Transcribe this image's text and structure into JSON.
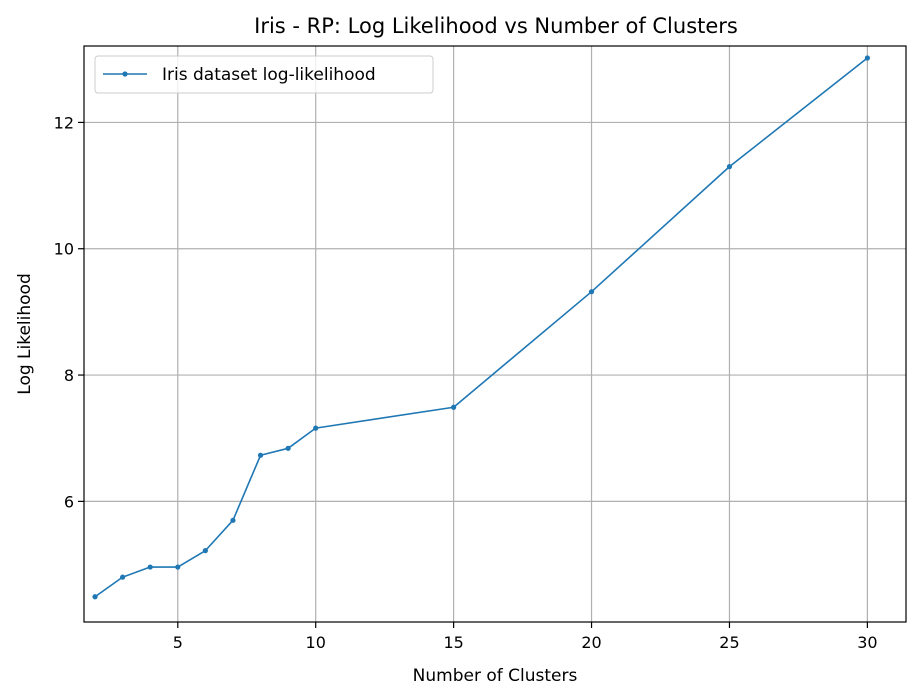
{
  "chart_data": {
    "type": "line",
    "title": "Iris - RP: Log Likelihood vs Number of Clusters",
    "xlabel": "Number of Clusters",
    "ylabel": "Log Likelihood",
    "xlim": [
      1.6,
      31.4
    ],
    "ylim": [
      4.09,
      13.21
    ],
    "xticks": [
      5,
      10,
      15,
      20,
      25,
      30
    ],
    "yticks": [
      6,
      8,
      10,
      12
    ],
    "grid": true,
    "legend_position": "top-left",
    "series": [
      {
        "name": "Iris dataset log-likelihood",
        "color": "#1f77b4",
        "marker": "dot",
        "x": [
          2,
          3,
          4,
          5,
          6,
          7,
          8,
          9,
          10,
          15,
          20,
          25,
          30
        ],
        "y": [
          4.49,
          4.8,
          4.96,
          4.96,
          5.22,
          5.7,
          6.73,
          6.84,
          7.16,
          7.49,
          9.32,
          11.3,
          13.02
        ]
      }
    ]
  }
}
